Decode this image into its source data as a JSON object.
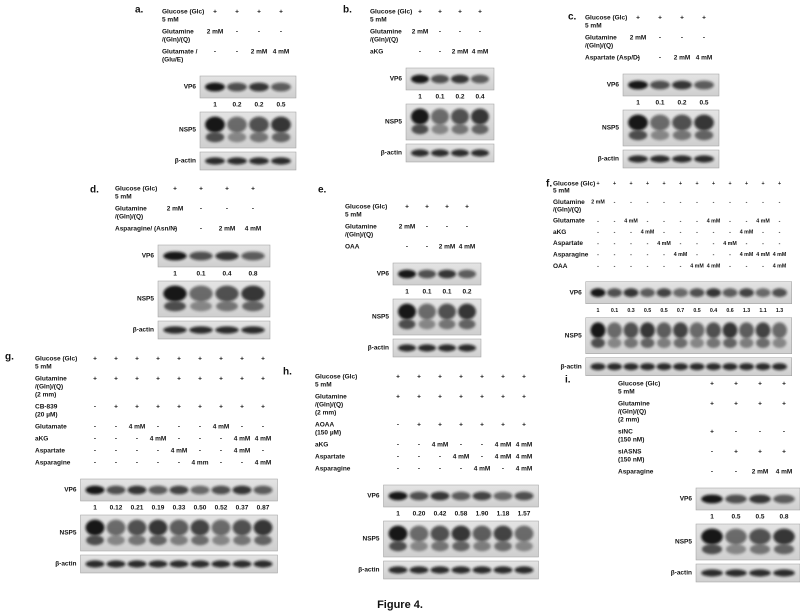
{
  "panels": [
    {
      "label": "a.",
      "rows": [
        {
          "label": [
            "Glucose (Glc)",
            "5 mM"
          ],
          "cells": [
            "+",
            "+",
            "+",
            "+"
          ]
        },
        {
          "label": [
            "Glutamine",
            "/(Gln)/(Q)"
          ],
          "cells": [
            "2 mM",
            "-",
            "-",
            "-"
          ]
        },
        {
          "label": [
            "Glutamate /",
            "(Glu/E)"
          ],
          "cells": [
            "-",
            "-",
            "2 mM",
            "4 mM"
          ]
        }
      ],
      "blots": [
        "VP6",
        "NSP5",
        "β-actin"
      ],
      "quantification": [
        "1",
        "0.2",
        "0.2",
        "0.5"
      ]
    },
    {
      "label": "b.",
      "rows": [
        {
          "label": [
            "Glucose (Glc)",
            "5 mM"
          ],
          "cells": [
            "+",
            "+",
            "+",
            "+"
          ]
        },
        {
          "label": [
            "Glutamine",
            "/(Gln)/(Q)"
          ],
          "cells": [
            "2 mM",
            "-",
            "-",
            "-"
          ]
        },
        {
          "label": [
            "aKG"
          ],
          "cells": [
            "-",
            "-",
            "2 mM",
            "4 mM"
          ]
        }
      ],
      "blots": [
        "VP6",
        "NSP5",
        "β-actin"
      ],
      "quantification": [
        "1",
        "0.1",
        "0.2",
        "0.4"
      ]
    },
    {
      "label": "c.",
      "rows": [
        {
          "label": [
            "Glucose (Glc)",
            "5 mM"
          ],
          "cells": [
            "+",
            "+",
            "+",
            "+"
          ]
        },
        {
          "label": [
            "Glutamine",
            "/(Gln)/(Q)"
          ],
          "cells": [
            "2 mM",
            "-",
            "-",
            "-"
          ]
        },
        {
          "label": [
            "Aspartate (Asp/D)"
          ],
          "cells": [
            "-",
            "-",
            "2 mM",
            "4 mM"
          ]
        }
      ],
      "blots": [
        "VP6",
        "NSP5",
        "β-actin"
      ],
      "quantification": [
        "1",
        "0.1",
        "0.2",
        "0.5"
      ]
    },
    {
      "label": "d.",
      "rows": [
        {
          "label": [
            "Glucose (Glc)",
            "5 mM"
          ],
          "cells": [
            "+",
            "+",
            "+",
            "+"
          ]
        },
        {
          "label": [
            "Glutamine",
            "/(Gln)/(Q)"
          ],
          "cells": [
            "2 mM",
            "-",
            "-",
            "-"
          ]
        },
        {
          "label": [
            "Asparagine/ (Asn/N)"
          ],
          "cells": [
            "-",
            "-",
            "2 mM",
            "4 mM"
          ]
        }
      ],
      "blots": [
        "VP6",
        "NSP5",
        "β-actin"
      ],
      "quantification": [
        "1",
        "0.1",
        "0.4",
        "0.8"
      ]
    },
    {
      "label": "e.",
      "rows": [
        {
          "label": [
            "Glucose (Glc)",
            "5 mM"
          ],
          "cells": [
            "+",
            "+",
            "+",
            "+"
          ]
        },
        {
          "label": [
            "Glutamine",
            "/(Gln)/(Q)"
          ],
          "cells": [
            "2 mM",
            "-",
            "-",
            "-"
          ]
        },
        {
          "label": [
            "OAA"
          ],
          "cells": [
            "-",
            "-",
            "2 mM",
            "4 mM"
          ]
        }
      ],
      "blots": [
        "VP6",
        "NSP5",
        "β-actin"
      ],
      "quantification": [
        "1",
        "0.1",
        "0.1",
        "0.2"
      ]
    },
    {
      "label": "f.",
      "rows": [
        {
          "label": [
            "Glucose (Glc)",
            "5 mM"
          ],
          "cells": [
            "+",
            "+",
            "+",
            "+",
            "+",
            "+",
            "+",
            "+",
            "+",
            "+",
            "+",
            "+"
          ]
        },
        {
          "label": [
            "Glutamine",
            "/(Gln)/(Q)"
          ],
          "cells": [
            "2 mM",
            "-",
            "-",
            "-",
            "-",
            "-",
            "-",
            "-",
            "-",
            "-",
            "-",
            "-"
          ]
        },
        {
          "label": [
            "Glutamate"
          ],
          "cells": [
            "-",
            "-",
            "4 mM",
            "-",
            "-",
            "-",
            "-",
            "4 mM",
            "-",
            "-",
            "4 mM",
            "-"
          ]
        },
        {
          "label": [
            "aKG"
          ],
          "cells": [
            "-",
            "-",
            "-",
            "4 mM",
            "-",
            "-",
            "-",
            "-",
            "-",
            "4 mM",
            "-",
            "-"
          ]
        },
        {
          "label": [
            "Aspartate"
          ],
          "cells": [
            "-",
            "-",
            "-",
            "-",
            "4 mM",
            "-",
            "-",
            "-",
            "4 mM",
            "-",
            "-",
            "-"
          ]
        },
        {
          "label": [
            "Asparagine"
          ],
          "cells": [
            "-",
            "-",
            "-",
            "-",
            "-",
            "4 mM",
            "-",
            "-",
            "-",
            "4 mM",
            "4 mM",
            "4 mM"
          ]
        },
        {
          "label": [
            "OAA"
          ],
          "cells": [
            "-",
            "-",
            "-",
            "-",
            "-",
            "-",
            "4 mM",
            "4 mM",
            "-",
            "-",
            "-",
            "4 mM"
          ]
        }
      ],
      "blots": [
        "VP6",
        "NSP5",
        "β-actin"
      ],
      "quantification": [
        "1",
        "0.1",
        "0.3",
        "0.5",
        "0.5",
        "0.7",
        "0.5",
        "0.4",
        "0.6",
        "1.3",
        "1.1",
        "1.3"
      ]
    },
    {
      "label": "g.",
      "rows": [
        {
          "label": [
            "Glucose (Glc)",
            "5 mM"
          ],
          "cells": [
            "+",
            "+",
            "+",
            "+",
            "+",
            "+",
            "+",
            "+",
            "+"
          ]
        },
        {
          "label": [
            "Glutamine",
            "/(Gln)/(Q)",
            "(2 mm)"
          ],
          "cells": [
            "+",
            "+",
            "+",
            "+",
            "+",
            "+",
            "+",
            "+",
            "+"
          ]
        },
        {
          "label": [
            "CB-839",
            "(20 µM)"
          ],
          "cells": [
            "-",
            "+",
            "+",
            "+",
            "+",
            "+",
            "+",
            "+",
            "+"
          ]
        },
        {
          "label": [
            "Glutamate"
          ],
          "cells": [
            "-",
            "-",
            "4 mM",
            "-",
            "-",
            "-",
            "4 mM",
            "-",
            "-"
          ]
        },
        {
          "label": [
            "aKG"
          ],
          "cells": [
            "-",
            "-",
            "-",
            "4 mM",
            "-",
            "-",
            "-",
            "4 mM",
            "4 mM"
          ]
        },
        {
          "label": [
            "Aspartate"
          ],
          "cells": [
            "-",
            "-",
            "-",
            "-",
            "4 mM",
            "-",
            "-",
            "4 mM",
            "-"
          ]
        },
        {
          "label": [
            "Asparagine"
          ],
          "cells": [
            "-",
            "-",
            "-",
            "-",
            "-",
            "4 mm",
            "-",
            "-",
            "4 mM"
          ]
        }
      ],
      "blots": [
        "VP6",
        "NSP5",
        "β-actin"
      ],
      "quantification": [
        "1",
        "0.12",
        "0.21",
        "0.19",
        "0.33",
        "0.50",
        "0.52",
        "0.37",
        "0.87"
      ]
    },
    {
      "label": "h.",
      "rows": [
        {
          "label": [
            "Glucose (Glc)",
            "5 mM"
          ],
          "cells": [
            "+",
            "+",
            "+",
            "+",
            "+",
            "+",
            "+"
          ]
        },
        {
          "label": [
            "Glutamine",
            "/(Gln)/(Q)",
            "(2 mm)"
          ],
          "cells": [
            "+",
            "+",
            "+",
            "+",
            "+",
            "+",
            "+"
          ]
        },
        {
          "label": [
            "AOAA",
            "(150 µM)"
          ],
          "cells": [
            "-",
            "+",
            "+",
            "+",
            "+",
            "+",
            "+"
          ]
        },
        {
          "label": [
            "aKG"
          ],
          "cells": [
            "-",
            "-",
            "4 mM",
            "-",
            "-",
            "4 mM",
            "4 mM"
          ]
        },
        {
          "label": [
            "Aspartate"
          ],
          "cells": [
            "-",
            "-",
            "-",
            "4 mM",
            "-",
            "4 mM",
            "4 mM"
          ]
        },
        {
          "label": [
            "Asparagine"
          ],
          "cells": [
            "-",
            "-",
            "-",
            "-",
            "4 mM",
            "-",
            "4 mM"
          ]
        }
      ],
      "blots": [
        "VP6",
        "NSP5",
        "β-actin"
      ],
      "quantification": [
        "1",
        "0.20",
        "0.42",
        "0.58",
        "1.90",
        "1.18",
        "1.57"
      ]
    },
    {
      "label": "i.",
      "rows": [
        {
          "label": [
            "Glucose (Glc)",
            "5 mM"
          ],
          "cells": [
            "+",
            "+",
            "+",
            "+"
          ]
        },
        {
          "label": [
            "Glutamine",
            "/(Gln)/(Q)",
            "(2 mm)"
          ],
          "cells": [
            "+",
            "+",
            "+",
            "+"
          ]
        },
        {
          "label": [
            "siNC",
            "(150 nM)"
          ],
          "cells": [
            "+",
            "-",
            "-",
            "-"
          ]
        },
        {
          "label": [
            "siASNS",
            "(150 nM)"
          ],
          "cells": [
            "-",
            "+",
            "+",
            "+"
          ]
        },
        {
          "label": [
            "Asparagine"
          ],
          "cells": [
            "-",
            "-",
            "2 mM",
            "4 mM"
          ]
        }
      ],
      "blots": [
        "VP6",
        "NSP5",
        "β-actin"
      ],
      "quantification": [
        "1",
        "0.5",
        "0.5",
        "0.8"
      ]
    }
  ],
  "caption": "Figure 4."
}
